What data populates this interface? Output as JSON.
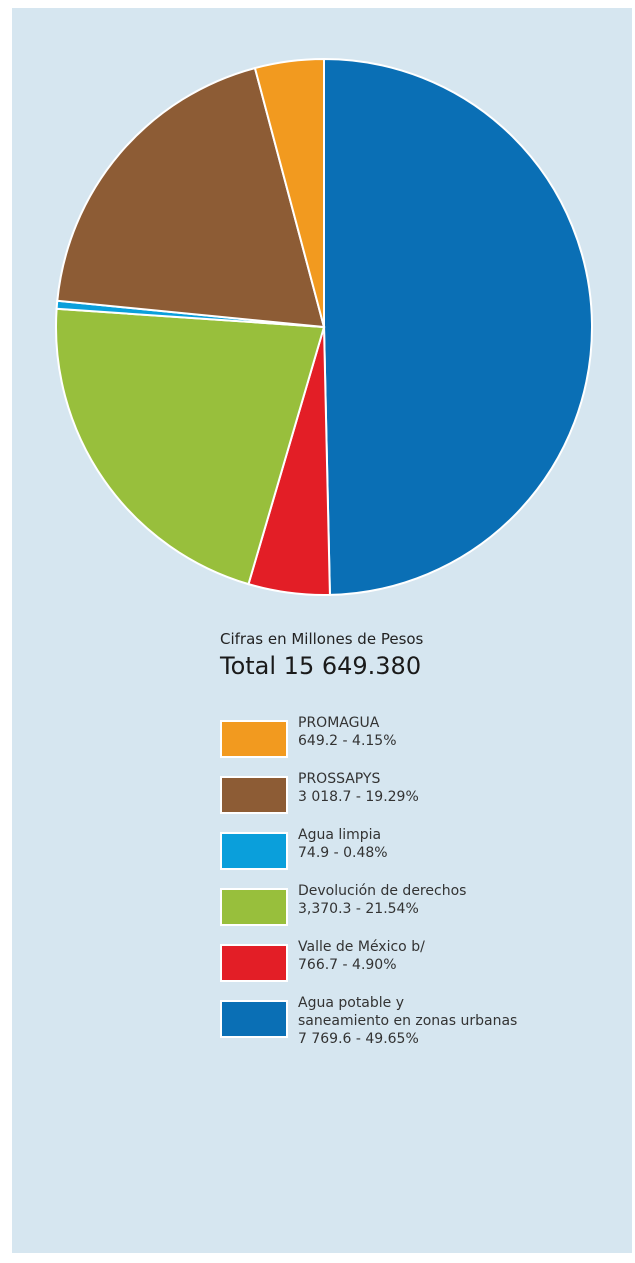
{
  "chart_data": {
    "type": "pie",
    "subtitle": "Cifras en Millones de Pesos",
    "total_label": "Total 15 649.380",
    "slices": [
      {
        "name": "Agua potable y saneamiento en zonas urbanas",
        "label_lines": [
          "Agua potable y",
          "saneamiento en zonas urbanas"
        ],
        "value_label": "7 769.6 - 49.65%",
        "value": 7769.6,
        "percent": 49.65,
        "color": "#0a6fb5"
      },
      {
        "name": "Valle de México b/",
        "label_lines": [
          "Valle de México b/"
        ],
        "value_label": "766.7 - 4.90%",
        "value": 766.7,
        "percent": 4.9,
        "color": "#e31e26"
      },
      {
        "name": "Devolución de derechos",
        "label_lines": [
          "Devolución de derechos"
        ],
        "value_label": "3,370.3 - 21.54%",
        "value": 3370.3,
        "percent": 21.54,
        "color": "#98bf3c"
      },
      {
        "name": "Agua limpia",
        "label_lines": [
          "Agua limpia"
        ],
        "value_label": "74.9 - 0.48%",
        "value": 74.9,
        "percent": 0.48,
        "color": "#0a9fdb"
      },
      {
        "name": "PROSSAPYS",
        "label_lines": [
          "PROSSAPYS"
        ],
        "value_label": "3 018.7 - 19.29%",
        "value": 3018.7,
        "percent": 19.29,
        "color": "#8d5c35"
      },
      {
        "name": "PROMAGUA",
        "label_lines": [
          "PROMAGUA"
        ],
        "value_label": "649.2 - 4.15%",
        "value": 649.2,
        "percent": 4.15,
        "color": "#f29a1f"
      }
    ],
    "legend_order": [
      "PROMAGUA",
      "PROSSAPYS",
      "Agua limpia",
      "Devolución de derechos",
      "Valle de México b/",
      "Agua potable y saneamiento en zonas urbanas"
    ]
  }
}
